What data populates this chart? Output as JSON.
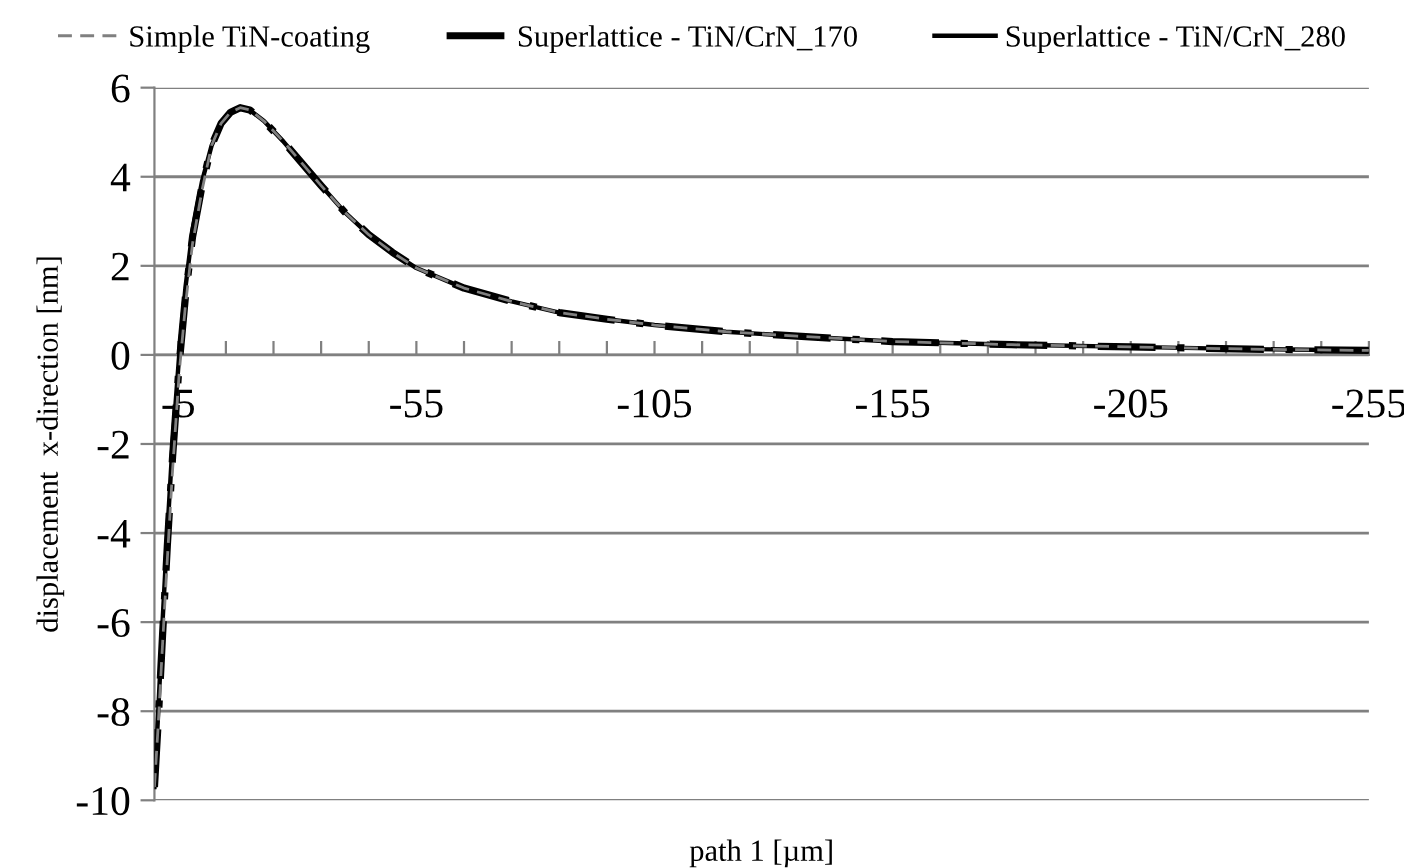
{
  "chart_data": {
    "type": "line",
    "xlabel": "path 1 [µm]",
    "ylabel": "displacement  x-direction [nm]",
    "x": [
      0,
      -0.8,
      -1.7,
      -2.7,
      -3.8,
      -5.2,
      -6.5,
      -8,
      -10,
      -12,
      -14,
      -16,
      -18,
      -20,
      -23,
      -27,
      -31,
      -35,
      -40,
      -45,
      -50,
      -55,
      -65,
      -75,
      -85,
      -95,
      -105,
      -120,
      -135,
      -155,
      -180,
      -205,
      -230,
      -255
    ],
    "series": [
      {
        "name": "Simple TiN-coating",
        "color": "#808080",
        "line_style": "dashed",
        "values": [
          -9.7,
          -8.3,
          -6.5,
          -4.6,
          -2.6,
          -0.4,
          1.1,
          2.5,
          3.7,
          4.7,
          5.2,
          5.45,
          5.55,
          5.5,
          5.25,
          4.8,
          4.3,
          3.8,
          3.2,
          2.7,
          2.3,
          1.95,
          1.5,
          1.2,
          0.95,
          0.8,
          0.67,
          0.52,
          0.42,
          0.3,
          0.23,
          0.18,
          0.13,
          0.1
        ]
      },
      {
        "name": "Superlattice - TiN/CrN_170",
        "color": "#000000",
        "line_style": "dashdot",
        "values": [
          -9.7,
          -8.2,
          -6.3,
          -4.3,
          -2.3,
          -0.2,
          1.3,
          2.65,
          3.8,
          4.7,
          5.2,
          5.45,
          5.55,
          5.5,
          5.25,
          4.8,
          4.3,
          3.8,
          3.2,
          2.7,
          2.3,
          1.95,
          1.5,
          1.2,
          0.95,
          0.8,
          0.67,
          0.52,
          0.42,
          0.3,
          0.23,
          0.18,
          0.13,
          0.1
        ]
      },
      {
        "name": "Superlattice - TiN/CrN_280",
        "color": "#000000",
        "line_style": "solid",
        "values": [
          -9.7,
          -8,
          -6,
          -4,
          -2,
          0,
          1.5,
          2.8,
          3.9,
          4.7,
          5.2,
          5.45,
          5.55,
          5.5,
          5.25,
          4.8,
          4.3,
          3.8,
          3.2,
          2.7,
          2.3,
          1.95,
          1.5,
          1.2,
          0.95,
          0.8,
          0.67,
          0.52,
          0.42,
          0.3,
          0.23,
          0.18,
          0.13,
          0.1
        ]
      }
    ],
    "xlim": [
      0,
      -255
    ],
    "xticks": [
      {
        "value": -5,
        "label": "-5"
      },
      {
        "value": -15,
        "label": null
      },
      {
        "value": -25,
        "label": null
      },
      {
        "value": -35,
        "label": null
      },
      {
        "value": -45,
        "label": null
      },
      {
        "value": -55,
        "label": "-55"
      },
      {
        "value": -65,
        "label": null
      },
      {
        "value": -75,
        "label": null
      },
      {
        "value": -85,
        "label": null
      },
      {
        "value": -95,
        "label": null
      },
      {
        "value": -105,
        "label": "-105"
      },
      {
        "value": -115,
        "label": null
      },
      {
        "value": -125,
        "label": null
      },
      {
        "value": -135,
        "label": null
      },
      {
        "value": -145,
        "label": null
      },
      {
        "value": -155,
        "label": "-155"
      },
      {
        "value": -165,
        "label": null
      },
      {
        "value": -175,
        "label": null
      },
      {
        "value": -185,
        "label": null
      },
      {
        "value": -195,
        "label": null
      },
      {
        "value": -205,
        "label": "-205"
      },
      {
        "value": -215,
        "label": null
      },
      {
        "value": -225,
        "label": null
      },
      {
        "value": -235,
        "label": null
      },
      {
        "value": -245,
        "label": null
      },
      {
        "value": -255,
        "label": "-255"
      }
    ],
    "ylim": [
      -10,
      6
    ],
    "yticks": [
      -10,
      -8,
      -6,
      -4,
      -2,
      0,
      2,
      4,
      6
    ],
    "grid": "y",
    "legend": "top",
    "marker": "none"
  }
}
